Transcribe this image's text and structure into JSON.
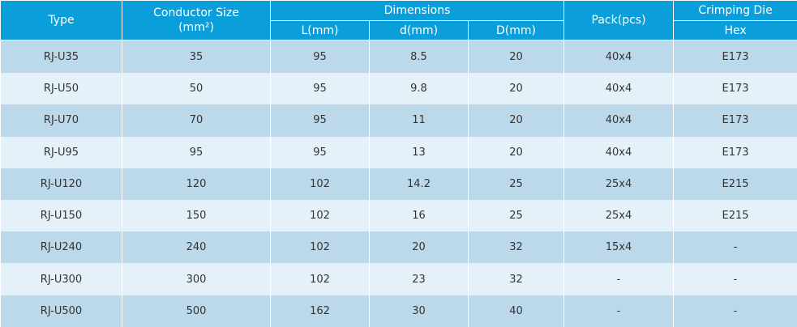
{
  "header": {
    "type": "Type",
    "conductor_size": {
      "title": "Conductor Size",
      "unit": "(mm²)"
    },
    "dimensions": {
      "title": "Dimensions",
      "columns": [
        "L(mm)",
        "d(mm)",
        "D(mm)"
      ]
    },
    "pack": "Pack(pcs)",
    "crimping_die": {
      "title": "Crimping Die",
      "sub": "Hex"
    }
  },
  "table": {
    "rows": [
      [
        "RJ-U35",
        "35",
        "95",
        "8.5",
        "20",
        "40x4",
        "E173"
      ],
      [
        "RJ-U50",
        "50",
        "95",
        "9.8",
        "20",
        "40x4",
        "E173"
      ],
      [
        "RJ-U70",
        "70",
        "95",
        "11",
        "20",
        "40x4",
        "E173"
      ],
      [
        "RJ-U95",
        "95",
        "95",
        "13",
        "20",
        "40x4",
        "E173"
      ],
      [
        "RJ-U120",
        "120",
        "102",
        "14.2",
        "25",
        "25x4",
        "E215"
      ],
      [
        "RJ-U150",
        "150",
        "102",
        "16",
        "25",
        "25x4",
        "E215"
      ],
      [
        "RJ-U240",
        "240",
        "102",
        "20",
        "32",
        "15x4",
        "-"
      ],
      [
        "RJ-U300",
        "300",
        "102",
        "23",
        "32",
        "-",
        "-"
      ],
      [
        "RJ-U500",
        "500",
        "162",
        "30",
        "40",
        "-",
        "-"
      ]
    ]
  }
}
